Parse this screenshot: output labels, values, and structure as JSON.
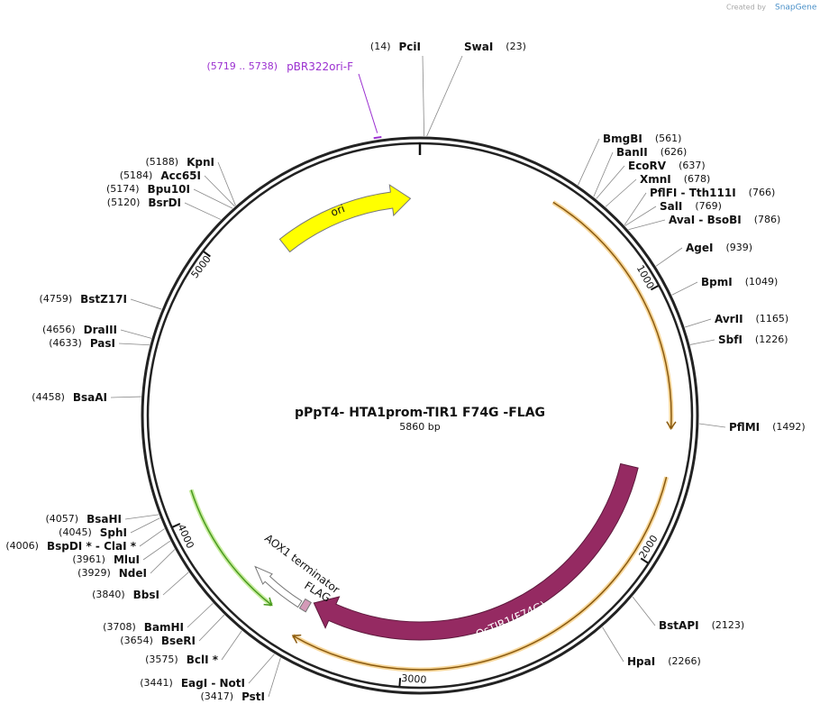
{
  "credit": {
    "prefix": "Created by",
    "brand": "SnapGene"
  },
  "map": {
    "title": "pPpT4- HTA1prom-TIR1 F74G -FLAG",
    "size": "5860 bp"
  },
  "ticks": [
    "1000",
    "2000",
    "3000",
    "4000",
    "5000"
  ],
  "primer": {
    "range": "(5719 .. 5738)",
    "name": "pBR322ori-F"
  },
  "features": [
    {
      "label": "ori"
    },
    {
      "label": "OsTIR1(F74G)"
    },
    {
      "label": "AOX1 terminator"
    },
    {
      "label": "FLAG"
    }
  ],
  "enzymes": [
    {
      "name": "PciI",
      "position": "(14)"
    },
    {
      "name": "SwaI",
      "position": "(23)"
    },
    {
      "name": "BmgBI",
      "position": "(561)"
    },
    {
      "name": "BanII",
      "position": "(626)"
    },
    {
      "name": "EcoRV",
      "position": "(637)"
    },
    {
      "name": "XmnI",
      "position": "(678)"
    },
    {
      "name": "PflFI - Tth111I",
      "position": "(766)"
    },
    {
      "name": "SalI",
      "position": "(769)"
    },
    {
      "name": "AvaI - BsoBI",
      "position": "(786)"
    },
    {
      "name": "AgeI",
      "position": "(939)"
    },
    {
      "name": "BpmI",
      "position": "(1049)"
    },
    {
      "name": "AvrII",
      "position": "(1165)"
    },
    {
      "name": "SbfI",
      "position": "(1226)"
    },
    {
      "name": "PflMI",
      "position": "(1492)"
    },
    {
      "name": "BstAPI",
      "position": "(2123)"
    },
    {
      "name": "HpaI",
      "position": "(2266)"
    },
    {
      "name": "PstI",
      "position": "(3417)"
    },
    {
      "name": "EagI - NotI",
      "position": "(3441)"
    },
    {
      "name": "BclI *",
      "position": "(3575)"
    },
    {
      "name": "BseRI",
      "position": "(3654)"
    },
    {
      "name": "BamHI",
      "position": "(3708)"
    },
    {
      "name": "BbsI",
      "position": "(3840)"
    },
    {
      "name": "NdeI",
      "position": "(3929)"
    },
    {
      "name": "MluI",
      "position": "(3961)"
    },
    {
      "name": "BspDI * - ClaI *",
      "position": "(4006)"
    },
    {
      "name": "SphI",
      "position": "(4045)"
    },
    {
      "name": "BsaHI",
      "position": "(4057)"
    },
    {
      "name": "BsaAI",
      "position": "(4458)"
    },
    {
      "name": "PasI",
      "position": "(4633)"
    },
    {
      "name": "DraIII",
      "position": "(4656)"
    },
    {
      "name": "BstZ17I",
      "position": "(4759)"
    },
    {
      "name": "BsrDI",
      "position": "(5120)"
    },
    {
      "name": "Bpu10I",
      "position": "(5174)"
    },
    {
      "name": "Acc65I",
      "position": "(5184)"
    },
    {
      "name": "KpnI",
      "position": "(5188)"
    }
  ]
}
